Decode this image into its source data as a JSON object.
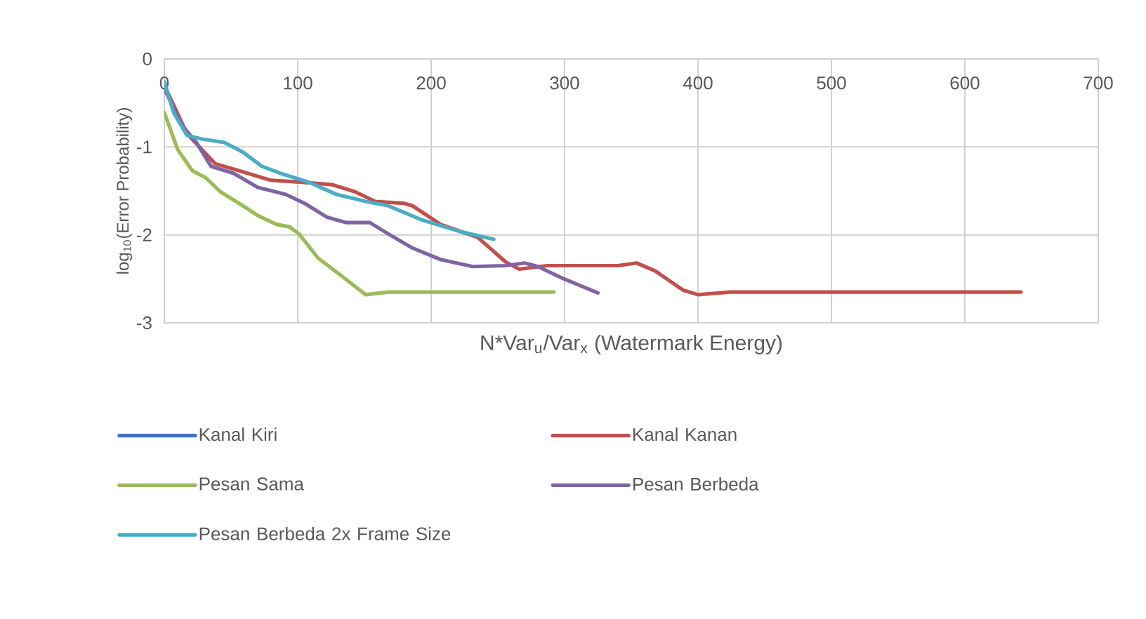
{
  "chart_data": {
    "type": "line",
    "xlabel": "N*Var$_{u}$/Var$_{x}$ (Watermark Energy)",
    "ylabel": "log$_{10}$(Error Probability)",
    "xlim": [
      0,
      700
    ],
    "ylim": [
      -3,
      0
    ],
    "xticks": [
      0,
      100,
      200,
      300,
      400,
      500,
      600,
      700
    ],
    "yticks": [
      -3,
      -2,
      -1,
      0
    ],
    "grid": true,
    "legend": "bottom",
    "marker": "none",
    "line_style": "solid",
    "series": [
      {
        "name": "Kanal Kiri",
        "color": "#4472c4"
      },
      {
        "name": "Kanal Kanan",
        "color": "#c0504d",
        "x": [
          0,
          17,
          38,
          56,
          80,
          101,
          126,
          143,
          158,
          179,
          186,
          207,
          235,
          256,
          266,
          287,
          340,
          354,
          368,
          389,
          400,
          424,
          642
        ],
        "values": [
          -0.3,
          -0.85,
          -1.19,
          -1.27,
          -1.38,
          -1.4,
          -1.43,
          -1.51,
          -1.62,
          -1.64,
          -1.67,
          -1.88,
          -2.03,
          -2.31,
          -2.39,
          -2.35,
          -2.35,
          -2.32,
          -2.41,
          -2.63,
          -2.68,
          -2.65,
          -2.65
        ]
      },
      {
        "name": "Pesan Sama",
        "color": "#9bbb59",
        "x": [
          0,
          10,
          21,
          31,
          42,
          59,
          70,
          84,
          94,
          101,
          115,
          133,
          151,
          168,
          256,
          292
        ],
        "values": [
          -0.61,
          -1.03,
          -1.27,
          -1.35,
          -1.51,
          -1.67,
          -1.78,
          -1.88,
          -1.91,
          -1.99,
          -2.26,
          -2.47,
          -2.68,
          -2.65,
          -2.65,
          -2.65
        ]
      },
      {
        "name": "Pesan Berbeda",
        "color": "#8064a2",
        "x": [
          0,
          14,
          24,
          35,
          52,
          70,
          91,
          105,
          122,
          136,
          154,
          168,
          186,
          207,
          231,
          256,
          270,
          280,
          298,
          325
        ],
        "values": [
          -0.34,
          -0.77,
          -0.95,
          -1.22,
          -1.3,
          -1.46,
          -1.54,
          -1.64,
          -1.8,
          -1.86,
          -1.86,
          -1.99,
          -2.15,
          -2.28,
          -2.36,
          -2.35,
          -2.32,
          -2.36,
          -2.49,
          -2.66
        ]
      },
      {
        "name": "Pesan Berbeda 2x Frame Size",
        "color": "#4bacc6",
        "x": [
          0,
          7,
          17,
          28,
          45,
          59,
          73,
          87,
          108,
          129,
          151,
          168,
          193,
          221,
          247
        ],
        "values": [
          -0.26,
          -0.61,
          -0.87,
          -0.91,
          -0.95,
          -1.06,
          -1.22,
          -1.3,
          -1.4,
          -1.54,
          -1.62,
          -1.67,
          -1.83,
          -1.96,
          -2.05
        ]
      }
    ]
  }
}
